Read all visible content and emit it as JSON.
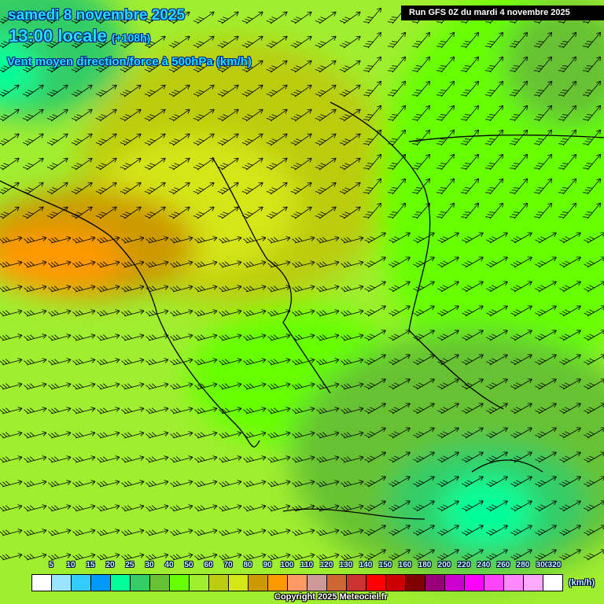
{
  "header": {
    "date": "samedi 8 novembre 2025",
    "time": "13:00 locale",
    "offset": "(+108h)",
    "parameter": "Vent moyen direction/force à 500hPa (km/h)"
  },
  "run": "Run GFS 0Z du mardi 4 novembre 2025",
  "legend": {
    "unit": "(km/h)",
    "labels": [
      "5",
      "10",
      "15",
      "20",
      "25",
      "30",
      "40",
      "50",
      "60",
      "70",
      "80",
      "90",
      "100",
      "110",
      "120",
      "130",
      "140",
      "150",
      "160",
      "180",
      "200",
      "220",
      "240",
      "260",
      "280",
      "300",
      "320"
    ],
    "colors": [
      "#ffffff",
      "#99e5ff",
      "#33ccff",
      "#0099ff",
      "#00ff99",
      "#33cc66",
      "#66c233",
      "#66ff00",
      "#a0ee30",
      "#bbcc11",
      "#d4e614",
      "#cc9900",
      "#ff9900",
      "#ff9966",
      "#cc9999",
      "#cc6633",
      "#cc3333",
      "#ff0000",
      "#cc0000",
      "#800000",
      "#990077",
      "#cc00cc",
      "#ff00ff",
      "#ff44ff",
      "#ff88ff",
      "#ffaaff",
      "#ffffff"
    ]
  },
  "copyright": "Copyright 2025 Meteociel.fr",
  "map": {
    "wind_direction": "south-west to north-east",
    "max_speed_zone": "90-100 km/h over Adriatic/Albania",
    "min_speed_zone": "25-30 km/h over Aegean/Crete"
  }
}
